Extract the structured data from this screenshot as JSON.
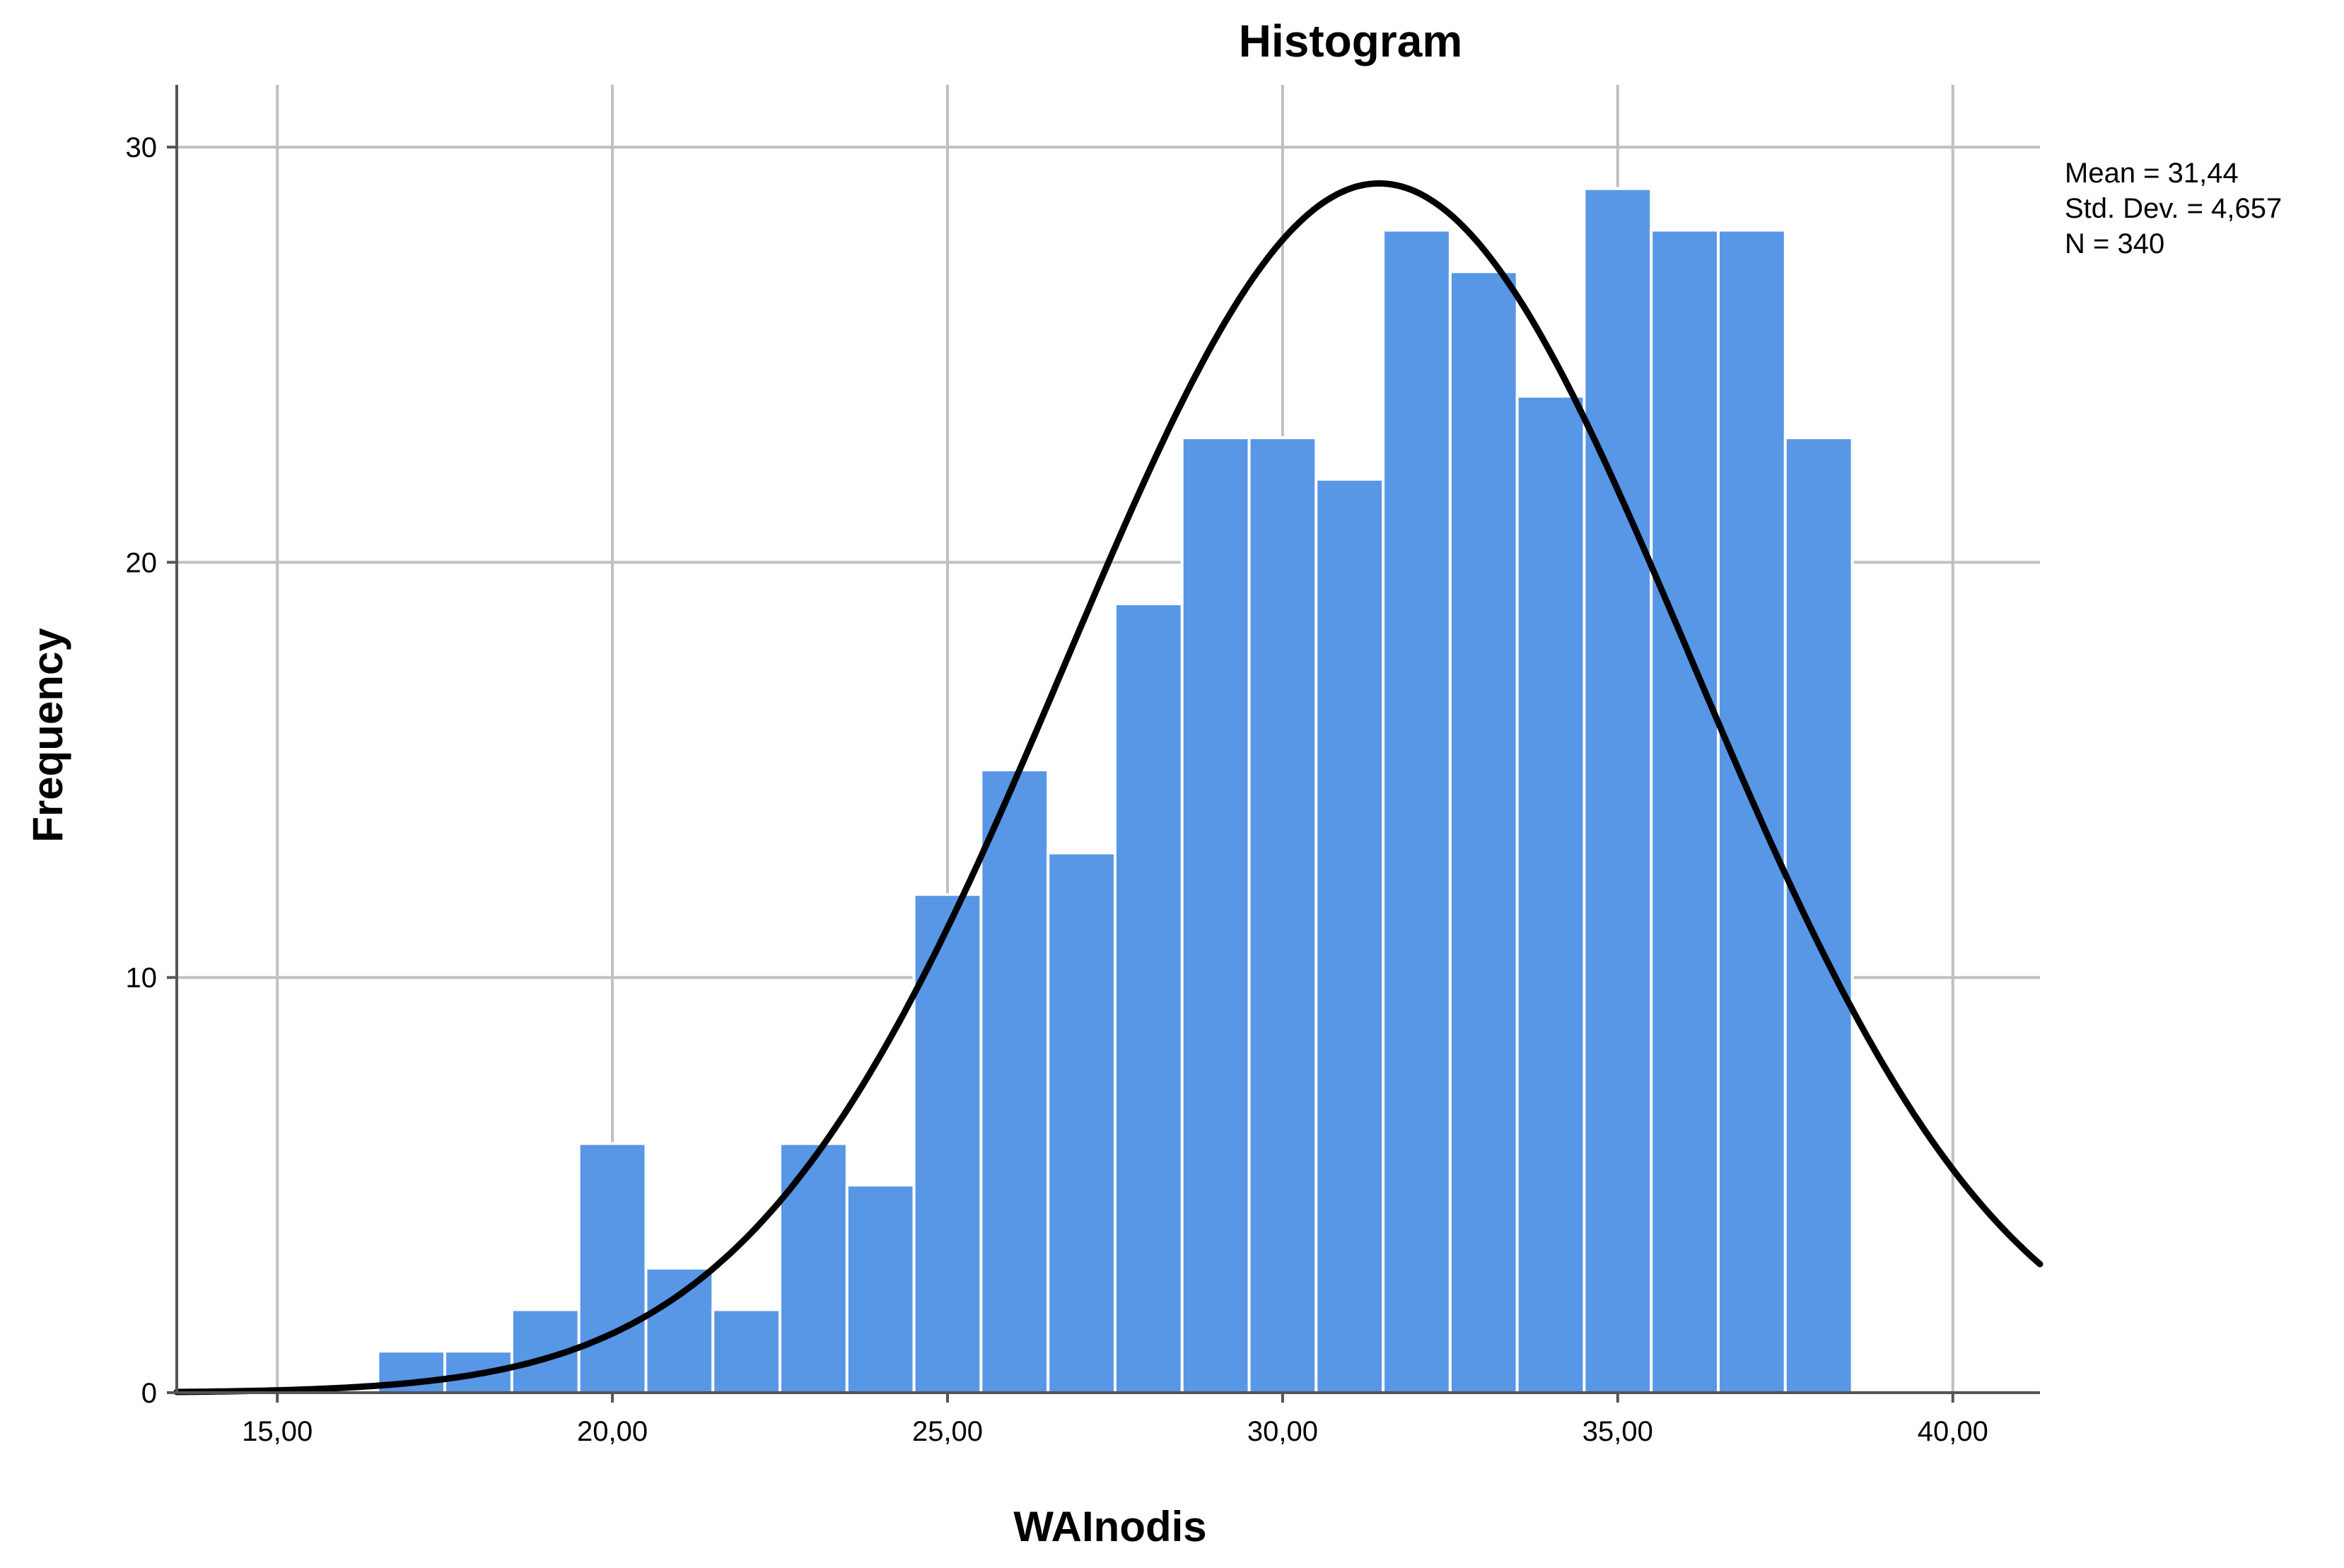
{
  "chart_data": {
    "type": "bar",
    "title": "Histogram",
    "xlabel": "WAInodis",
    "ylabel": "Frequency",
    "xlim": [
      13.5,
      41.3
    ],
    "ylim": [
      0,
      31.5
    ],
    "grid": true,
    "x_ticks": [
      15,
      20,
      25,
      30,
      35,
      40
    ],
    "x_tick_labels": [
      "15,00",
      "20,00",
      "25,00",
      "30,00",
      "35,00",
      "40,00"
    ],
    "y_ticks": [
      0,
      10,
      20,
      30
    ],
    "y_tick_labels": [
      "0",
      "10",
      "20",
      "30"
    ],
    "bin_width": 1,
    "bins": [
      {
        "start": 16.5,
        "end": 17.5,
        "value": 1
      },
      {
        "start": 17.5,
        "end": 18.5,
        "value": 1
      },
      {
        "start": 18.5,
        "end": 19.5,
        "value": 2
      },
      {
        "start": 19.5,
        "end": 20.5,
        "value": 6
      },
      {
        "start": 20.5,
        "end": 21.5,
        "value": 3
      },
      {
        "start": 21.5,
        "end": 22.5,
        "value": 2
      },
      {
        "start": 22.5,
        "end": 23.5,
        "value": 6
      },
      {
        "start": 23.5,
        "end": 24.5,
        "value": 5
      },
      {
        "start": 24.5,
        "end": 25.5,
        "value": 12
      },
      {
        "start": 25.5,
        "end": 26.5,
        "value": 15
      },
      {
        "start": 26.5,
        "end": 27.5,
        "value": 13
      },
      {
        "start": 27.5,
        "end": 28.5,
        "value": 19
      },
      {
        "start": 28.5,
        "end": 29.5,
        "value": 23
      },
      {
        "start": 29.5,
        "end": 30.5,
        "value": 23
      },
      {
        "start": 30.5,
        "end": 31.5,
        "value": 22
      },
      {
        "start": 31.5,
        "end": 32.5,
        "value": 28
      },
      {
        "start": 32.5,
        "end": 33.5,
        "value": 27
      },
      {
        "start": 33.5,
        "end": 34.5,
        "value": 24
      },
      {
        "start": 34.5,
        "end": 35.5,
        "value": 29
      },
      {
        "start": 35.5,
        "end": 36.5,
        "value": 28
      },
      {
        "start": 36.5,
        "end": 37.5,
        "value": 28
      },
      {
        "start": 37.5,
        "end": 38.5,
        "value": 23
      }
    ],
    "normal_curve": {
      "mean": 31.44,
      "std_dev": 4.657,
      "n": 340
    },
    "bar_color": "#5896e6",
    "bar_edge_color": "#ffffff",
    "curve_color": "#000000",
    "grid_color": "#c0c0c0",
    "stats_text": {
      "mean": "Mean = 31,44",
      "std_dev": "Std. Dev. = 4,657",
      "n": "N = 340"
    }
  }
}
